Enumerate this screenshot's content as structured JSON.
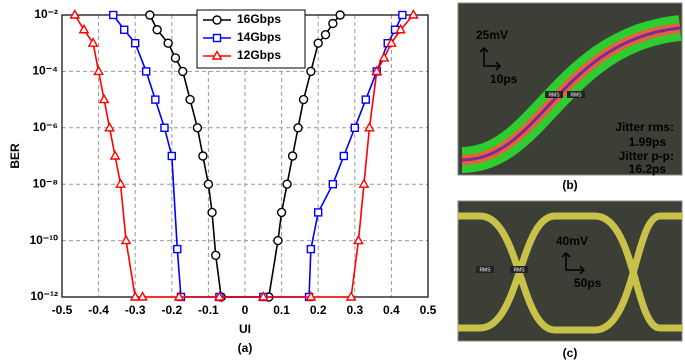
{
  "chart_data": {
    "type": "line",
    "x_label": "UI",
    "y_label": "BER",
    "label": "(a)",
    "xlim": [
      -0.5,
      0.5
    ],
    "xticks": [
      -0.5,
      -0.4,
      -0.3,
      -0.2,
      -0.1,
      0,
      0.1,
      0.2,
      0.3,
      0.4,
      0.5
    ],
    "ylim": [
      1e-12,
      0.01
    ],
    "ylog": true,
    "grid": true,
    "legend": "top",
    "yticks": [
      {
        "value": 1e-12,
        "label": "10⁻¹²"
      },
      {
        "value": 1e-10,
        "label": "10⁻¹⁰"
      },
      {
        "value": 1e-08,
        "label": "10⁻⁸"
      },
      {
        "value": 1e-06,
        "label": "10⁻⁶"
      },
      {
        "value": 0.0001,
        "label": "10⁻⁴"
      },
      {
        "value": 0.01,
        "label": "10⁻²"
      }
    ],
    "series": [
      {
        "name": "16Gbps",
        "color": "#000000",
        "marker": "circle",
        "x": [
          -0.26,
          -0.24,
          -0.21,
          -0.19,
          -0.17,
          -0.15,
          -0.13,
          -0.115,
          -0.1,
          -0.09,
          -0.08,
          -0.065,
          0.065,
          0.09,
          0.1,
          0.115,
          0.13,
          0.145,
          0.16,
          0.18,
          0.2,
          0.22,
          0.24,
          0.26
        ],
        "values": [
          0.01,
          0.003,
          0.001,
          0.0003,
          0.0001,
          1e-05,
          1e-06,
          1e-07,
          1e-08,
          1e-09,
          3e-11,
          1e-12,
          1e-12,
          1e-10,
          1e-09,
          1e-08,
          1e-07,
          1e-06,
          1e-05,
          0.0001,
          0.001,
          0.002,
          0.005,
          0.01
        ]
      },
      {
        "name": "14Gbps",
        "color": "#0000ff",
        "marker": "square",
        "x": [
          -0.36,
          -0.33,
          -0.3,
          -0.27,
          -0.245,
          -0.22,
          -0.2,
          -0.185,
          -0.175,
          -0.07,
          0.05,
          0.175,
          0.18,
          0.2,
          0.24,
          0.27,
          0.3,
          0.33,
          0.36,
          0.39,
          0.41,
          0.43
        ],
        "values": [
          0.01,
          0.003,
          0.001,
          0.0001,
          1e-05,
          1e-06,
          1e-07,
          5e-11,
          1e-12,
          1e-12,
          1e-12,
          1e-12,
          5e-11,
          1e-09,
          1e-08,
          1e-07,
          1e-06,
          1e-05,
          0.0001,
          0.001,
          0.003,
          0.01
        ]
      },
      {
        "name": "12Gbps",
        "color": "#ff0000",
        "marker": "triangle",
        "x": [
          -0.465,
          -0.44,
          -0.415,
          -0.4,
          -0.385,
          -0.37,
          -0.355,
          -0.34,
          -0.325,
          -0.3,
          -0.28,
          -0.18,
          -0.07,
          0.05,
          0.18,
          0.29,
          0.31,
          0.325,
          0.34,
          0.36,
          0.38,
          0.4,
          0.425,
          0.46
        ],
        "values": [
          0.01,
          0.003,
          0.001,
          0.0001,
          1e-05,
          1e-06,
          1e-07,
          1e-08,
          1e-10,
          1e-12,
          1e-12,
          1e-12,
          1e-12,
          1e-12,
          1e-12,
          1e-12,
          1e-10,
          1e-08,
          1e-06,
          0.0001,
          0.0003,
          0.001,
          0.003,
          0.01
        ]
      }
    ]
  },
  "panel_b": {
    "label": "(b)",
    "v_scale": "25mV",
    "h_scale": "10ps",
    "tags": [
      "RMS",
      "RMS"
    ],
    "lines": [
      "Jitter rms:",
      "1.99ps",
      "Jitter p-p:",
      "16.2ps"
    ]
  },
  "panel_c": {
    "label": "(c)",
    "v_scale": "40mV",
    "h_scale": "50ps",
    "tags": [
      "RMS",
      "RMS"
    ]
  }
}
